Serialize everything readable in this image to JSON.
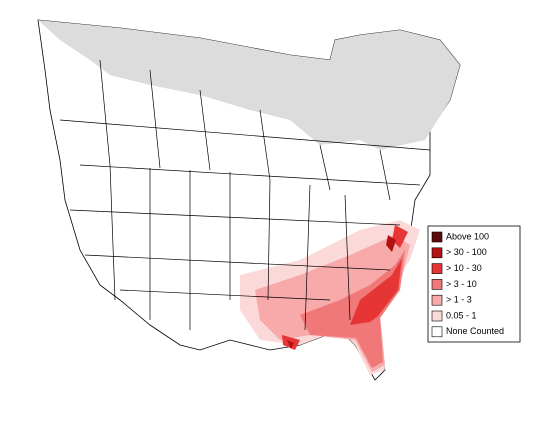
{
  "legend": {
    "items": [
      {
        "label": "Above 100",
        "color": "#5c0a0a"
      },
      {
        "label": "> 30 - 100",
        "color": "#b31212"
      },
      {
        "label": "> 10 - 30",
        "color": "#e53535"
      },
      {
        "label": "> 3 - 10",
        "color": "#f07878"
      },
      {
        "label": "> 1 - 3",
        "color": "#f8aaaa"
      },
      {
        "label": "0.05 - 1",
        "color": "#fcd9d9"
      },
      {
        "label": "None Counted",
        "color": "#ffffff"
      }
    ]
  }
}
